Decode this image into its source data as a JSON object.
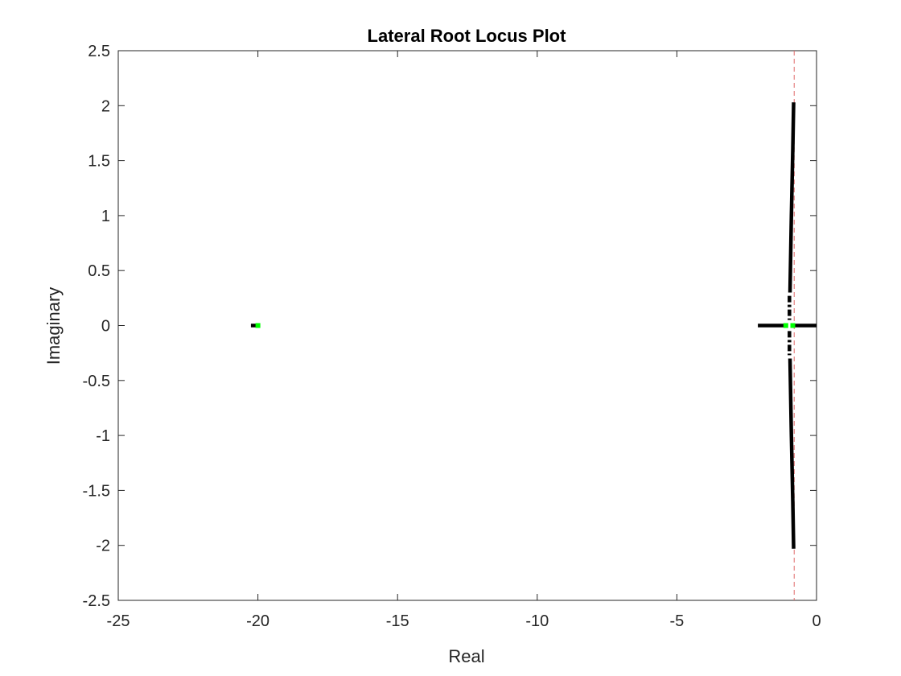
{
  "chart_data": {
    "type": "scatter",
    "title": "Lateral Root Locus Plot",
    "xlabel": "Real",
    "ylabel": "Imaginary",
    "xlim": [
      -25,
      0
    ],
    "ylim": [
      -2.5,
      2.5
    ],
    "xticks": [
      -25,
      -20,
      -15,
      -10,
      -5,
      0
    ],
    "xtick_labels": [
      "-25",
      "-20",
      "-15",
      "-10",
      "-5",
      "0"
    ],
    "yticks": [
      2.5,
      2,
      1.5,
      1,
      0.5,
      0,
      -0.5,
      -1,
      -1.5,
      -2,
      -2.5
    ],
    "ytick_labels": [
      "2.5",
      "2",
      "1.5",
      "1",
      "0.5",
      "0",
      "-0.5",
      "-1",
      "-1.5",
      "-2",
      "-2.5"
    ],
    "grid": false,
    "legend": "none",
    "colors": {
      "locus": "#000000",
      "poles": "#00ff00",
      "reference_line": "#e06666",
      "axes": "#262626"
    },
    "reference_line": {
      "orientation": "vertical",
      "x": -0.8,
      "style": "dashed"
    },
    "branches": [
      {
        "name_hint": "far-left real segment",
        "style": "solid",
        "points": [
          [
            -20.25,
            0
          ],
          [
            -19.95,
            0
          ]
        ]
      },
      {
        "name_hint": "real axis segment",
        "style": "solid",
        "points": [
          [
            -2.1,
            0
          ],
          [
            -1.05,
            0
          ]
        ]
      },
      {
        "name_hint": "real axis segment right",
        "style": "solid",
        "points": [
          [
            -0.85,
            0
          ],
          [
            0,
            0
          ]
        ]
      },
      {
        "name_hint": "upper branch",
        "style": "solid",
        "points": [
          [
            -0.95,
            0.3
          ],
          [
            -0.9,
            1.0
          ],
          [
            -0.85,
            1.6
          ],
          [
            -0.82,
            2.03
          ]
        ]
      },
      {
        "name_hint": "upper branch near axis",
        "style": "dashdot",
        "points": [
          [
            -0.97,
            0.27
          ],
          [
            -0.97,
            0.05
          ]
        ]
      },
      {
        "name_hint": "lower branch",
        "style": "solid",
        "points": [
          [
            -0.95,
            -0.3
          ],
          [
            -0.9,
            -1.0
          ],
          [
            -0.85,
            -1.6
          ],
          [
            -0.82,
            -2.03
          ]
        ]
      },
      {
        "name_hint": "lower branch near axis",
        "style": "dashdot",
        "points": [
          [
            -0.97,
            -0.05
          ],
          [
            -0.97,
            -0.27
          ]
        ]
      }
    ],
    "poles": [
      {
        "x": -20.0,
        "y": 0
      },
      {
        "x": -1.1,
        "y": 0
      },
      {
        "x": -0.85,
        "y": 0
      }
    ]
  }
}
